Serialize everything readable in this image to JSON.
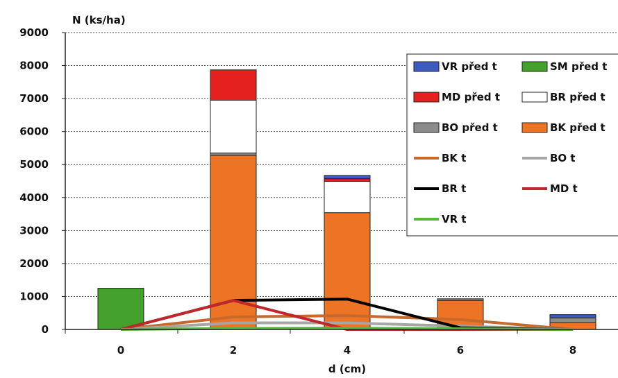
{
  "chart_data": {
    "type": "bar",
    "ylabel": "N (ks/ha)",
    "xlabel": "d (cm)",
    "x_ticks": [
      "0",
      "2",
      "4",
      "6",
      "8"
    ],
    "y_ticks": [
      "0",
      "1000",
      "2000",
      "3000",
      "4000",
      "5000",
      "6000",
      "7000",
      "8000",
      "9000"
    ],
    "ylim": [
      0,
      9000
    ],
    "grid": "horizontal dotted",
    "legend_position": "top-right",
    "stacked_series": [
      {
        "name": "SM před t",
        "color": "#43a12c",
        "values": [
          1250,
          0,
          0,
          0,
          0
        ]
      },
      {
        "name": "BK před t",
        "color": "#ec7424",
        "values": [
          0,
          5280,
          3540,
          880,
          200
        ]
      },
      {
        "name": "BO před t",
        "color": "#8c8c8c",
        "values": [
          0,
          70,
          0,
          50,
          150
        ]
      },
      {
        "name": "BR před t",
        "color": "#ffffff",
        "values": [
          0,
          1600,
          950,
          0,
          0
        ]
      },
      {
        "name": "MD před t",
        "color": "#e5211f",
        "values": [
          0,
          920,
          80,
          0,
          0
        ]
      },
      {
        "name": "VR před t",
        "color": "#3c5bbf",
        "values": [
          0,
          0,
          100,
          0,
          100
        ]
      }
    ],
    "line_series": [
      {
        "name": "BK t",
        "color": "#c8692b",
        "values": [
          0,
          380,
          420,
          300,
          0
        ]
      },
      {
        "name": "BO t",
        "color": "#a6a6a6",
        "values": [
          0,
          200,
          200,
          100,
          0
        ]
      },
      {
        "name": "BR t",
        "color": "#000000",
        "values": [
          0,
          880,
          920,
          50,
          0
        ]
      },
      {
        "name": "MD t",
        "color": "#c0272d",
        "values": [
          0,
          880,
          0,
          0,
          0
        ]
      },
      {
        "name": "VR t",
        "color": "#55b83a",
        "values": [
          0,
          30,
          40,
          20,
          0
        ]
      }
    ],
    "legend": [
      {
        "name": "VR před t",
        "kind": "box",
        "color": "#3c5bbf"
      },
      {
        "name": "SM před t",
        "kind": "box",
        "color": "#43a12c"
      },
      {
        "name": "MD před t",
        "kind": "box",
        "color": "#e5211f"
      },
      {
        "name": "BR před t",
        "kind": "box",
        "color": "#ffffff"
      },
      {
        "name": "BO před t",
        "kind": "box",
        "color": "#8c8c8c"
      },
      {
        "name": "BK před t",
        "kind": "box",
        "color": "#ec7424"
      },
      {
        "name": "BK t",
        "kind": "line",
        "color": "#c8692b"
      },
      {
        "name": "BO t",
        "kind": "line",
        "color": "#a6a6a6"
      },
      {
        "name": "BR t",
        "kind": "line",
        "color": "#000000"
      },
      {
        "name": "MD t",
        "kind": "line",
        "color": "#c0272d"
      },
      {
        "name": "VR t",
        "kind": "line",
        "color": "#55b83a"
      }
    ]
  }
}
